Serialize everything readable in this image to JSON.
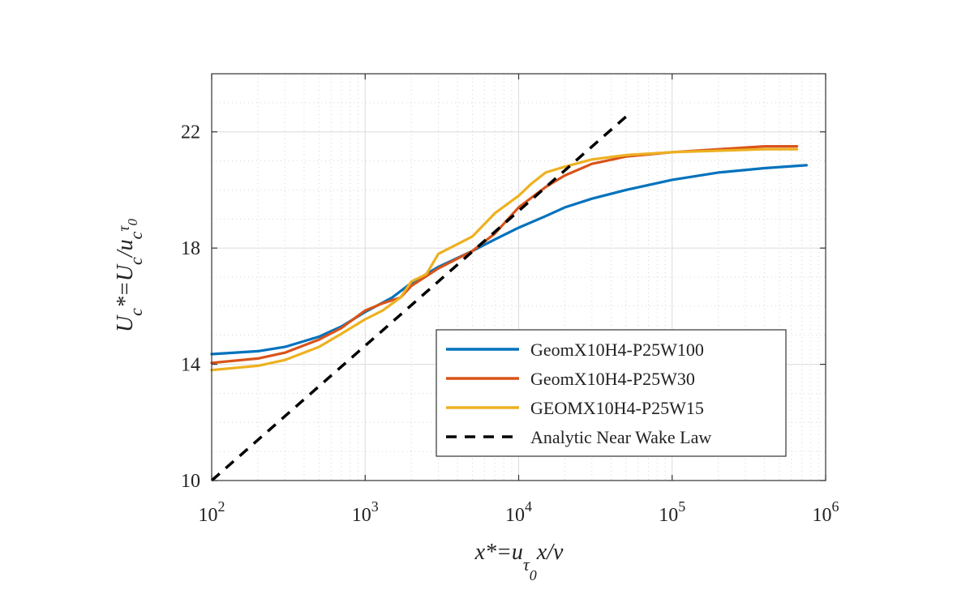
{
  "chart_data": {
    "type": "line",
    "x_scale": "log",
    "xlim": [
      100,
      1000000
    ],
    "ylim": [
      10,
      24
    ],
    "x_ticks": [
      {
        "value": 100,
        "base": "10",
        "exp": "2"
      },
      {
        "value": 1000,
        "base": "10",
        "exp": "3"
      },
      {
        "value": 10000,
        "base": "10",
        "exp": "4"
      },
      {
        "value": 100000,
        "base": "10",
        "exp": "5"
      },
      {
        "value": 1000000,
        "base": "10",
        "exp": "6"
      }
    ],
    "y_ticks": [
      10,
      14,
      18,
      22
    ],
    "grid": true,
    "minor_grid": true,
    "legend_position": "lower-right",
    "xlabel": {
      "main": "x*=u",
      "sub": "τ",
      "subsub": "0",
      "tail": "x/ν"
    },
    "ylabel": {
      "main": "U",
      "sub1": "c",
      "mid": "*=U",
      "sub2": "c",
      "mid2": "/u",
      "sub3": "c",
      "subsub": "τ",
      "subsubsub": "0"
    },
    "series": [
      {
        "name": "GeomX10H4-P25W100",
        "color": "#0072BD",
        "style": "solid",
        "x": [
          100,
          200,
          300,
          500,
          700,
          1000,
          1500,
          2000,
          3000,
          5000,
          7000,
          10000,
          15000,
          20000,
          30000,
          50000,
          100000,
          200000,
          400000,
          750000
        ],
        "y": [
          14.35,
          14.45,
          14.6,
          14.95,
          15.3,
          15.8,
          16.3,
          16.8,
          17.35,
          17.9,
          18.3,
          18.7,
          19.1,
          19.4,
          19.7,
          20.0,
          20.35,
          20.6,
          20.75,
          20.85
        ]
      },
      {
        "name": "GeomX10H4-P25W30",
        "color": "#D95319",
        "style": "solid",
        "x": [
          100,
          200,
          300,
          500,
          700,
          1000,
          1300,
          1700,
          2000,
          3000,
          5000,
          7000,
          10000,
          15000,
          20000,
          30000,
          50000,
          100000,
          200000,
          400000,
          650000
        ],
        "y": [
          14.05,
          14.2,
          14.4,
          14.85,
          15.25,
          15.85,
          16.1,
          16.3,
          16.7,
          17.3,
          17.9,
          18.5,
          19.4,
          20.1,
          20.5,
          20.9,
          21.15,
          21.3,
          21.4,
          21.5,
          21.5
        ]
      },
      {
        "name": "GEOMX10H4-P25W15",
        "color": "#EDB120",
        "style": "solid",
        "x": [
          100,
          200,
          300,
          500,
          700,
          1000,
          1300,
          1700,
          2000,
          2500,
          3000,
          5000,
          7000,
          10000,
          12000,
          15000,
          20000,
          30000,
          50000,
          100000,
          200000,
          400000,
          650000
        ],
        "y": [
          13.8,
          13.95,
          14.15,
          14.6,
          15.05,
          15.55,
          15.85,
          16.3,
          16.85,
          17.1,
          17.8,
          18.4,
          19.2,
          19.8,
          20.2,
          20.6,
          20.8,
          21.05,
          21.2,
          21.3,
          21.35,
          21.4,
          21.4
        ]
      },
      {
        "name": "Analytic Near Wake Law",
        "color": "#000000",
        "style": "dashed",
        "x": [
          100,
          52000
        ],
        "y": [
          10.0,
          22.6
        ]
      }
    ]
  }
}
